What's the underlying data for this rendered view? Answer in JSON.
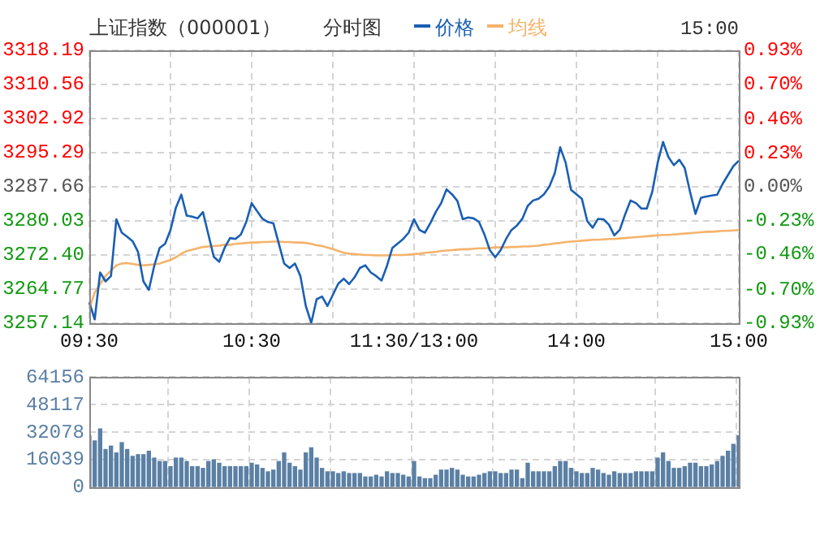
{
  "chart_data": [
    {
      "type": "line",
      "title": "上证指数（000001）",
      "subtitle": "分时图",
      "annotations": [
        "15:00"
      ],
      "legend": "top",
      "grid": true,
      "marker": "none",
      "categories": [
        "09:30",
        null,
        null,
        null,
        null,
        null,
        null,
        null,
        null,
        null,
        null,
        null,
        null,
        null,
        null,
        null,
        null,
        null,
        null,
        null,
        null,
        null,
        null,
        null,
        null,
        null,
        null,
        null,
        null,
        null,
        "10:30",
        null,
        null,
        null,
        null,
        null,
        null,
        null,
        null,
        null,
        null,
        null,
        null,
        null,
        null,
        null,
        null,
        null,
        null,
        null,
        null,
        null,
        null,
        null,
        null,
        null,
        null,
        null,
        null,
        null,
        "11:30/13:00",
        null,
        null,
        null,
        null,
        null,
        null,
        null,
        null,
        null,
        null,
        null,
        null,
        null,
        null,
        null,
        null,
        null,
        null,
        null,
        null,
        null,
        null,
        null,
        null,
        null,
        null,
        null,
        null,
        null,
        "14:00",
        null,
        null,
        null,
        null,
        null,
        null,
        null,
        null,
        null,
        null,
        null,
        null,
        null,
        null,
        null,
        null,
        null,
        null,
        null,
        null,
        null,
        null,
        null,
        null,
        null,
        null,
        null,
        null,
        null,
        "15:00"
      ],
      "ylim": [
        3257.14,
        3318.19
      ],
      "yticks": [
        3257.14,
        3264.77,
        {
          "value": 3272.4,
          "label": "3272.40"
        },
        3280.03,
        3287.66,
        3295.29,
        3302.92,
        3310.56,
        3318.19
      ],
      "y2lim": [
        -0.93,
        0.93
      ],
      "y2ticks": [
        {
          "value": -0.93,
          "label": "-0.93%"
        },
        {
          "value": -0.7,
          "label": "-0.70%"
        },
        {
          "value": -0.46,
          "label": "-0.46%"
        },
        {
          "value": -0.23,
          "label": "-0.23%"
        },
        {
          "value": 0,
          "label": "0.00%"
        },
        {
          "value": 0.23,
          "label": "0.23%"
        },
        {
          "value": 0.46,
          "label": "0.46%"
        },
        {
          "value": 0.7,
          "label": "0.70%"
        },
        {
          "value": 0.93,
          "label": "0.93%"
        }
      ],
      "series": [
        {
          "name": "价格",
          "color": "#1a5fb4",
          "values": [
            3261.8,
            3258.0,
            3268.5,
            3266.5,
            3267.7,
            3280.4,
            3277.4,
            3276.5,
            3275.5,
            3273.1,
            3266.5,
            3264.6,
            3270.0,
            3274.0,
            3274.9,
            3278.0,
            3283.0,
            3285.9,
            3281.2,
            3281.0,
            3280.6,
            3282.0,
            3277.0,
            3272.0,
            3270.9,
            3274.0,
            3276.2,
            3276.0,
            3277.0,
            3279.8,
            3284.0,
            3282.2,
            3280.5,
            3279.8,
            3279.5,
            3275.0,
            3270.5,
            3269.5,
            3270.5,
            3267.7,
            3261.0,
            3257.2,
            3262.5,
            3263.1,
            3261.0,
            3263.5,
            3266.0,
            3267.1,
            3265.9,
            3267.4,
            3269.5,
            3270.1,
            3268.5,
            3267.7,
            3266.7,
            3270.0,
            3274.0,
            3275.0,
            3276.0,
            3277.4,
            3280.4,
            3278.0,
            3277.4,
            3279.5,
            3282.0,
            3284.0,
            3287.1,
            3286.0,
            3284.5,
            3280.4,
            3280.8,
            3280.6,
            3279.8,
            3277.0,
            3273.5,
            3271.9,
            3273.5,
            3276.0,
            3278.0,
            3279.0,
            3280.5,
            3283.4,
            3284.6,
            3285.0,
            3286.0,
            3287.7,
            3290.7,
            3296.5,
            3293.1,
            3287.0,
            3286.0,
            3285.0,
            3280.0,
            3278.5,
            3280.5,
            3280.4,
            3279.2,
            3276.8,
            3278.0,
            3281.5,
            3284.6,
            3284.0,
            3282.8,
            3282.8,
            3286.5,
            3293.0,
            3297.7,
            3294.3,
            3292.5,
            3293.7,
            3291.9,
            3286.5,
            3281.6,
            3285.2,
            3285.5,
            3285.7,
            3285.9,
            3288.3,
            3290.3,
            3292.3,
            3293.5
          ]
        },
        {
          "name": "均线",
          "color": "#f5b36b",
          "values": [
            3260.4,
            3264.0,
            3265.9,
            3267.7,
            3268.9,
            3270.1,
            3270.5,
            3270.6,
            3270.4,
            3270.2,
            3270.1,
            3270.2,
            3270.3,
            3270.5,
            3270.9,
            3271.3,
            3271.9,
            3272.7,
            3273.3,
            3273.6,
            3273.9,
            3274.2,
            3274.3,
            3274.4,
            3274.5,
            3274.7,
            3274.7,
            3274.9,
            3275.0,
            3275.1,
            3275.2,
            3275.2,
            3275.3,
            3275.3,
            3275.4,
            3275.4,
            3275.3,
            3275.3,
            3275.2,
            3275.2,
            3275.1,
            3274.9,
            3274.6,
            3274.4,
            3274.1,
            3273.7,
            3273.3,
            3272.9,
            3272.7,
            3272.6,
            3272.5,
            3272.4,
            3272.4,
            3272.3,
            3272.3,
            3272.3,
            3272.4,
            3272.4,
            3272.4,
            3272.5,
            3272.6,
            3272.7,
            3272.9,
            3273.0,
            3273.1,
            3273.3,
            3273.4,
            3273.5,
            3273.6,
            3273.7,
            3273.7,
            3273.8,
            3273.9,
            3273.9,
            3274.0,
            3274.1,
            3274.1,
            3274.1,
            3274.2,
            3274.2,
            3274.3,
            3274.3,
            3274.4,
            3274.5,
            3274.7,
            3274.8,
            3275.0,
            3275.1,
            3275.3,
            3275.4,
            3275.5,
            3275.6,
            3275.7,
            3275.8,
            3275.8,
            3275.9,
            3276.0,
            3276.0,
            3276.1,
            3276.2,
            3276.3,
            3276.4,
            3276.5,
            3276.6,
            3276.7,
            3276.8,
            3276.9,
            3276.9,
            3277.0,
            3277.1,
            3277.2,
            3277.3,
            3277.4,
            3277.5,
            3277.6,
            3277.6,
            3277.7,
            3277.8,
            3277.8,
            3277.9,
            3278.0
          ]
        }
      ]
    },
    {
      "type": "bar",
      "grid": true,
      "tick_labels": "y",
      "color": "#5b80a5",
      "categories": [
        null,
        null,
        null,
        null,
        null,
        null,
        null,
        null,
        null,
        null,
        null,
        null,
        null,
        null,
        null,
        null,
        null,
        null,
        null,
        null,
        null,
        null,
        null,
        null,
        null,
        null,
        null,
        null,
        null,
        null,
        null,
        null,
        null,
        null,
        null,
        null,
        null,
        null,
        null,
        null,
        null,
        null,
        null,
        null,
        null,
        null,
        null,
        null,
        null,
        null,
        null,
        null,
        null,
        null,
        null,
        null,
        null,
        null,
        null,
        null,
        null,
        null,
        null,
        null,
        null,
        null,
        null,
        null,
        null,
        null,
        null,
        null,
        null,
        null,
        null,
        null,
        null,
        null,
        null,
        null,
        null,
        null,
        null,
        null,
        null,
        null,
        null,
        null,
        null,
        null,
        null,
        null,
        null,
        null,
        null,
        null,
        null,
        null,
        null,
        null,
        null,
        null,
        null,
        null,
        null,
        null,
        null,
        null,
        null,
        null,
        null,
        null,
        null,
        null,
        null,
        null,
        null,
        null,
        null,
        null,
        null
      ],
      "ylim": [
        0,
        64156
      ],
      "yticks": [
        0,
        16039,
        32078,
        48117,
        64156
      ],
      "values": [
        30000,
        27000,
        34000,
        22000,
        24000,
        20000,
        26000,
        22000,
        18000,
        19000,
        19000,
        21000,
        17000,
        15000,
        15000,
        12000,
        17000,
        17000,
        15000,
        12000,
        12000,
        11000,
        15000,
        16000,
        14000,
        12000,
        12000,
        12000,
        12000,
        12000,
        14000,
        13000,
        11000,
        9000,
        10000,
        15000,
        20000,
        14000,
        12000,
        10000,
        20000,
        23000,
        17000,
        11000,
        9000,
        9000,
        8000,
        9000,
        8000,
        8000,
        8000,
        6000,
        6000,
        7000,
        6000,
        9000,
        8000,
        8000,
        7000,
        6000,
        15000,
        6000,
        5000,
        5000,
        7000,
        10000,
        10000,
        11000,
        10000,
        7000,
        6000,
        6000,
        7000,
        8000,
        9000,
        9000,
        8000,
        8000,
        10000,
        10000,
        5000,
        14000,
        9000,
        9000,
        9000,
        9000,
        12000,
        15000,
        15000,
        11000,
        9000,
        8000,
        8000,
        11000,
        10000,
        8000,
        7000,
        9000,
        8000,
        8000,
        8000,
        9000,
        9000,
        9000,
        9000,
        17000,
        20000,
        15000,
        11000,
        11000,
        12000,
        14000,
        14000,
        12000,
        12000,
        13000,
        15000,
        18000,
        21000,
        25000,
        30000
      ]
    }
  ]
}
